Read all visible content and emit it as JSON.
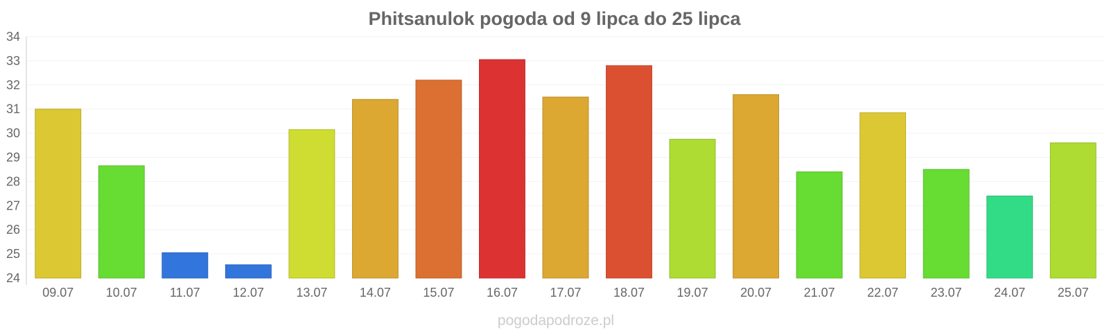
{
  "chart_data": {
    "type": "bar",
    "title": "Phitsanulok pogoda od 9 lipca do 25 lipca",
    "xlabel": "",
    "ylabel": "",
    "categories": [
      "09.07",
      "10.07",
      "11.07",
      "12.07",
      "13.07",
      "14.07",
      "15.07",
      "16.07",
      "17.07",
      "18.07",
      "19.07",
      "20.07",
      "21.07",
      "22.07",
      "23.07",
      "24.07",
      "25.07"
    ],
    "values": [
      31.0,
      28.65,
      25.05,
      24.55,
      30.15,
      31.4,
      32.2,
      33.05,
      31.5,
      32.8,
      29.75,
      31.6,
      28.4,
      30.85,
      28.5,
      27.4,
      29.6
    ],
    "colors": [
      "#dcc832",
      "#67dc32",
      "#3275dc",
      "#3275dc",
      "#cfdc32",
      "#dca832",
      "#dc6f32",
      "#dc3232",
      "#dca832",
      "#dc5032",
      "#aedc32",
      "#dca832",
      "#67dc32",
      "#dcc832",
      "#67dc32",
      "#32dc87",
      "#aedc32"
    ],
    "ylim": [
      24,
      34
    ],
    "yticks": [
      24,
      25,
      26,
      27,
      28,
      29,
      30,
      31,
      32,
      33,
      34
    ],
    "grid": true,
    "watermark": "pogodapodroze.pl"
  }
}
